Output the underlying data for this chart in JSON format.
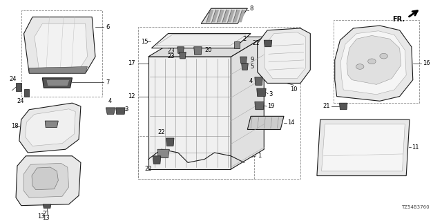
{
  "background_color": "#ffffff",
  "diagram_code": "TZ54B3760",
  "fr_label": "FR.",
  "fig_width": 6.4,
  "fig_height": 3.2,
  "dpi": 100,
  "line_color": "#1a1a1a",
  "text_color": "#111111",
  "label_fontsize": 6.0,
  "gray_fill": "#e8e8e8",
  "dark_fill": "#333333",
  "medium_fill": "#999999"
}
